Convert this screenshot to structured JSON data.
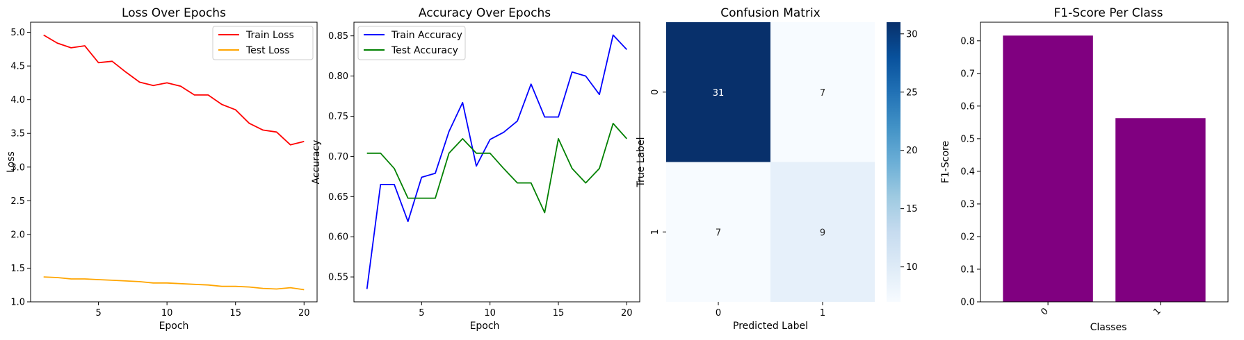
{
  "chart_data": [
    {
      "type": "line",
      "title": "Loss Over Epochs",
      "xlabel": "Epoch",
      "ylabel": "Loss",
      "xlim": [
        0.05,
        20.95
      ],
      "ylim": [
        1.0,
        5.15
      ],
      "xticks": [
        5,
        10,
        15,
        20
      ],
      "yticks": [
        1.0,
        1.5,
        2.0,
        2.5,
        3.0,
        3.5,
        4.0,
        4.5,
        5.0
      ],
      "x": [
        1,
        2,
        3,
        4,
        5,
        6,
        7,
        8,
        9,
        10,
        11,
        12,
        13,
        14,
        15,
        16,
        17,
        18,
        19,
        20
      ],
      "series": [
        {
          "name": "Train Loss",
          "color": "#ff0000",
          "values": [
            4.96,
            4.84,
            4.77,
            4.8,
            4.55,
            4.57,
            4.41,
            4.26,
            4.21,
            4.25,
            4.2,
            4.07,
            4.07,
            3.93,
            3.85,
            3.65,
            3.55,
            3.52,
            3.33,
            3.38
          ]
        },
        {
          "name": "Test Loss",
          "color": "#ffa500",
          "values": [
            1.37,
            1.36,
            1.34,
            1.34,
            1.33,
            1.32,
            1.31,
            1.3,
            1.28,
            1.28,
            1.27,
            1.26,
            1.25,
            1.23,
            1.23,
            1.22,
            1.2,
            1.19,
            1.21,
            1.18
          ]
        }
      ],
      "legend": "upper-right"
    },
    {
      "type": "line",
      "title": "Accuracy Over Epochs",
      "xlabel": "Epoch",
      "ylabel": "Accuracy",
      "xlim": [
        0.05,
        20.95
      ],
      "ylim": [
        0.519,
        0.867
      ],
      "xticks": [
        5,
        10,
        15,
        20
      ],
      "yticks": [
        0.55,
        0.6,
        0.65,
        0.7,
        0.75,
        0.8,
        0.85
      ],
      "x": [
        1,
        2,
        3,
        4,
        5,
        6,
        7,
        8,
        9,
        10,
        11,
        12,
        13,
        14,
        15,
        16,
        17,
        18,
        19,
        20
      ],
      "series": [
        {
          "name": "Train Accuracy",
          "color": "#0000ff",
          "values": [
            0.535,
            0.665,
            0.665,
            0.619,
            0.674,
            0.679,
            0.731,
            0.767,
            0.688,
            0.721,
            0.73,
            0.744,
            0.79,
            0.749,
            0.749,
            0.805,
            0.8,
            0.777,
            0.851,
            0.833
          ]
        },
        {
          "name": "Test Accuracy",
          "color": "#008000",
          "values": [
            0.704,
            0.704,
            0.685,
            0.648,
            0.648,
            0.648,
            0.704,
            0.722,
            0.704,
            0.704,
            0.685,
            0.667,
            0.667,
            0.63,
            0.722,
            0.685,
            0.667,
            0.685,
            0.741,
            0.722
          ]
        }
      ],
      "legend": "upper-left"
    },
    {
      "type": "heatmap",
      "title": "Confusion Matrix",
      "xlabel": "Predicted Label",
      "ylabel": "True Label",
      "x_categories": [
        "0",
        "1"
      ],
      "y_categories": [
        "0",
        "1"
      ],
      "values": [
        [
          31,
          7
        ],
        [
          7,
          9
        ]
      ],
      "colormap": "Blues",
      "colorbar_ticks": [
        10,
        15,
        20,
        25,
        30
      ],
      "colorbar_range": [
        7,
        31
      ]
    },
    {
      "type": "bar",
      "title": "F1-Score Per Class",
      "xlabel": "Classes",
      "ylabel": "F1-Score",
      "categories": [
        "0",
        "1"
      ],
      "values": [
        0.816,
        0.563
      ],
      "color": "#800080",
      "ylim": [
        0.0,
        0.857
      ],
      "yticks": [
        0.0,
        0.1,
        0.2,
        0.3,
        0.4,
        0.5,
        0.6,
        0.7,
        0.8
      ]
    }
  ]
}
